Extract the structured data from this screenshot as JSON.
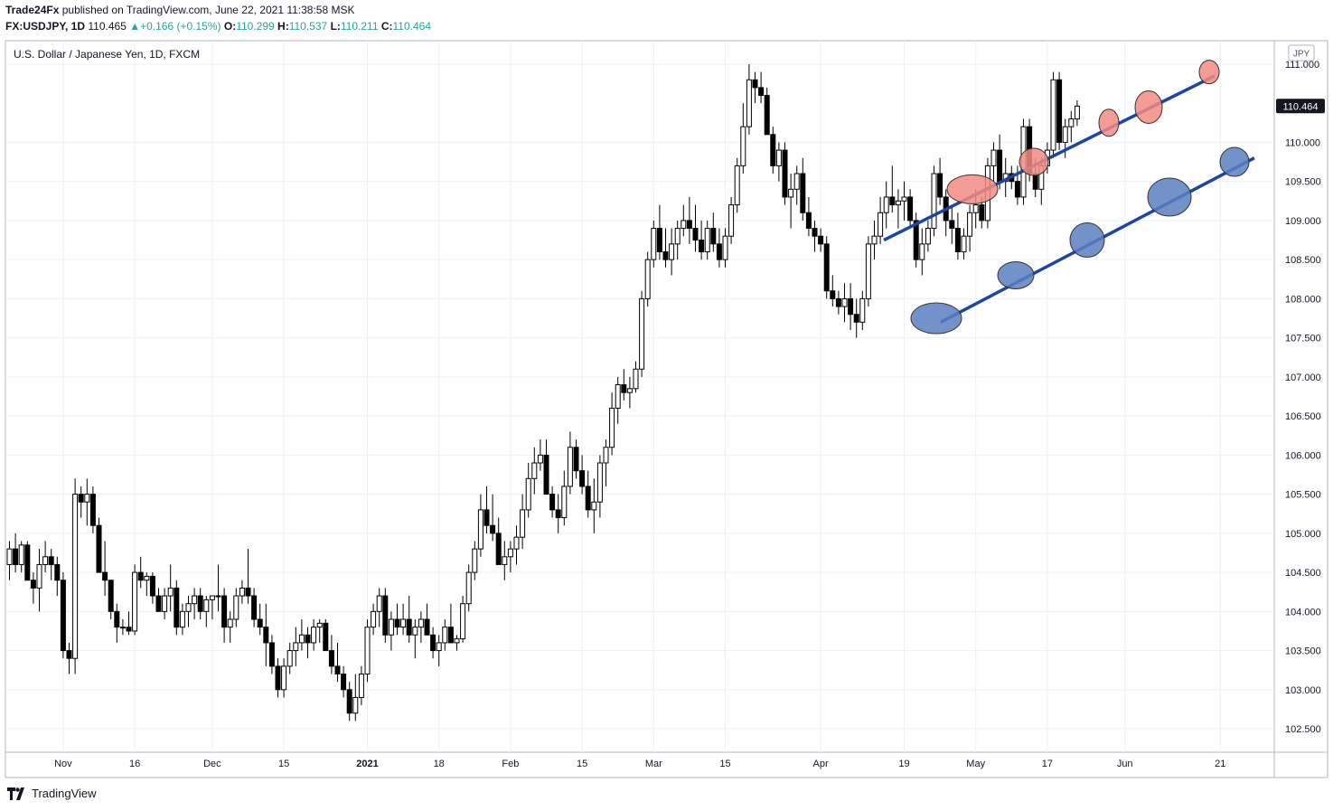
{
  "header": {
    "author": "Trade24Fx",
    "published": "published on TradingView.com, June 22, 2021 11:38:58 MSK",
    "symbol": "FX:USDJPY, 1D",
    "last": "110.465",
    "change": "+0.166 (+0.15%)",
    "o_label": "O:",
    "o": "110.299",
    "h_label": "H:",
    "h": "110.537",
    "l_label": "L:",
    "l": "110.211",
    "c_label": "C:",
    "c": "110.464"
  },
  "brand": {
    "label": "TradingView"
  },
  "colors": {
    "up_fill": "#ffffff",
    "down_fill": "#000000",
    "candle_stroke": "#000000",
    "channel_line": "#1c47a0",
    "resistance": "#f28b82",
    "support": "#5b7fbf",
    "price_label_bg": "#131722",
    "gain": "#26a69a"
  },
  "chart_data": {
    "type": "candlestick",
    "title": "U.S. Dollar / Japanese Yen, 1D, FXCM",
    "currency": "JPY",
    "current_price": "110.464",
    "ylim": [
      102.2,
      111.3
    ],
    "y_ticks": [
      "111.000",
      "110.000",
      "109.500",
      "109.000",
      "108.500",
      "108.000",
      "107.500",
      "107.000",
      "106.500",
      "106.000",
      "105.500",
      "105.000",
      "104.500",
      "104.000",
      "103.500",
      "103.000",
      "102.500"
    ],
    "x_ticks": [
      {
        "label": "Nov",
        "i": 9
      },
      {
        "label": "16",
        "i": 21
      },
      {
        "label": "Dec",
        "i": 34
      },
      {
        "label": "15",
        "i": 46
      },
      {
        "label": "2021",
        "i": 60
      },
      {
        "label": "18",
        "i": 72
      },
      {
        "label": "Feb",
        "i": 84
      },
      {
        "label": "15",
        "i": 96
      },
      {
        "label": "Mar",
        "i": 108
      },
      {
        "label": "15",
        "i": 120
      },
      {
        "label": "Apr",
        "i": 136
      },
      {
        "label": "19",
        "i": 150
      },
      {
        "label": "May",
        "i": 162
      },
      {
        "label": "17",
        "i": 174
      },
      {
        "label": "Jun",
        "i": 187
      },
      {
        "label": "21",
        "i": 203
      }
    ],
    "candles": [
      [
        104.6,
        104.9,
        104.4,
        104.8
      ],
      [
        104.8,
        105.0,
        104.5,
        104.6
      ],
      [
        104.6,
        104.9,
        104.5,
        104.85
      ],
      [
        104.85,
        104.9,
        104.4,
        104.4
      ],
      [
        104.4,
        104.5,
        104.1,
        104.3
      ],
      [
        104.3,
        104.8,
        104.0,
        104.6
      ],
      [
        104.6,
        104.9,
        104.5,
        104.7
      ],
      [
        104.7,
        104.8,
        104.4,
        104.6
      ],
      [
        104.6,
        104.7,
        104.2,
        104.4
      ],
      [
        104.4,
        104.5,
        103.4,
        103.5
      ],
      [
        103.5,
        103.6,
        103.2,
        103.4
      ],
      [
        103.4,
        105.7,
        103.2,
        105.5
      ],
      [
        105.5,
        105.6,
        105.2,
        105.4
      ],
      [
        105.4,
        105.7,
        105.1,
        105.5
      ],
      [
        105.5,
        105.6,
        105.0,
        105.1
      ],
      [
        105.1,
        105.2,
        104.5,
        104.5
      ],
      [
        104.5,
        104.9,
        104.2,
        104.4
      ],
      [
        104.4,
        104.4,
        103.9,
        104.0
      ],
      [
        104.0,
        104.1,
        103.6,
        103.8
      ],
      [
        103.8,
        103.9,
        103.7,
        103.8
      ],
      [
        103.8,
        104.0,
        103.7,
        103.75
      ],
      [
        103.75,
        104.6,
        103.7,
        104.5
      ],
      [
        104.5,
        104.7,
        104.3,
        104.4
      ],
      [
        104.4,
        104.5,
        104.2,
        104.45
      ],
      [
        104.45,
        104.5,
        104.1,
        104.2
      ],
      [
        104.2,
        104.3,
        104.0,
        104.0
      ],
      [
        104.0,
        104.3,
        103.9,
        104.2
      ],
      [
        104.2,
        104.6,
        104.0,
        104.3
      ],
      [
        104.3,
        104.4,
        103.7,
        103.8
      ],
      [
        103.8,
        104.1,
        103.7,
        104.0
      ],
      [
        104.0,
        104.2,
        103.8,
        104.1
      ],
      [
        104.1,
        104.3,
        103.9,
        104.2
      ],
      [
        104.2,
        104.3,
        103.9,
        104.0
      ],
      [
        104.0,
        104.2,
        103.8,
        104.15
      ],
      [
        104.15,
        104.2,
        103.9,
        104.2
      ],
      [
        104.2,
        104.6,
        104.0,
        104.2
      ],
      [
        104.2,
        104.3,
        103.6,
        103.8
      ],
      [
        103.8,
        104.0,
        103.6,
        103.9
      ],
      [
        103.9,
        104.3,
        103.8,
        104.2
      ],
      [
        104.2,
        104.4,
        104.1,
        104.3
      ],
      [
        104.3,
        104.8,
        104.1,
        104.2
      ],
      [
        104.2,
        104.3,
        103.8,
        103.9
      ],
      [
        103.9,
        104.1,
        103.7,
        103.8
      ],
      [
        103.8,
        104.1,
        103.3,
        103.6
      ],
      [
        103.6,
        103.7,
        103.2,
        103.3
      ],
      [
        103.3,
        103.4,
        102.9,
        103.0
      ],
      [
        103.0,
        103.4,
        102.9,
        103.3
      ],
      [
        103.3,
        103.6,
        103.2,
        103.5
      ],
      [
        103.5,
        103.8,
        103.3,
        103.6
      ],
      [
        103.6,
        103.9,
        103.5,
        103.7
      ],
      [
        103.7,
        103.8,
        103.4,
        103.6
      ],
      [
        103.6,
        103.9,
        103.5,
        103.8
      ],
      [
        103.8,
        103.9,
        103.6,
        103.85
      ],
      [
        103.85,
        103.9,
        103.5,
        103.5
      ],
      [
        103.5,
        103.7,
        103.2,
        103.3
      ],
      [
        103.3,
        103.6,
        103.1,
        103.2
      ],
      [
        103.2,
        103.3,
        102.9,
        103.0
      ],
      [
        103.0,
        103.1,
        102.6,
        102.7
      ],
      [
        102.7,
        103.2,
        102.6,
        102.9
      ],
      [
        102.9,
        103.3,
        102.8,
        103.2
      ],
      [
        103.2,
        103.9,
        103.1,
        103.8
      ],
      [
        103.8,
        104.1,
        103.7,
        104.0
      ],
      [
        104.0,
        104.3,
        103.8,
        104.2
      ],
      [
        104.2,
        104.3,
        103.6,
        103.7
      ],
      [
        103.7,
        104.0,
        103.5,
        103.9
      ],
      [
        103.9,
        104.1,
        103.7,
        103.8
      ],
      [
        103.8,
        104.1,
        103.7,
        103.9
      ],
      [
        103.9,
        104.2,
        103.6,
        103.7
      ],
      [
        103.7,
        103.9,
        103.4,
        103.8
      ],
      [
        103.8,
        104.0,
        103.6,
        103.9
      ],
      [
        103.9,
        104.1,
        103.7,
        103.7
      ],
      [
        103.7,
        103.8,
        103.4,
        103.5
      ],
      [
        103.5,
        103.7,
        103.3,
        103.6
      ],
      [
        103.6,
        103.9,
        103.5,
        103.8
      ],
      [
        103.8,
        104.1,
        103.6,
        103.6
      ],
      [
        103.6,
        103.7,
        103.5,
        103.65
      ],
      [
        103.65,
        104.2,
        103.6,
        104.1
      ],
      [
        104.1,
        104.6,
        104.0,
        104.5
      ],
      [
        104.5,
        104.9,
        104.4,
        104.8
      ],
      [
        104.8,
        105.5,
        104.7,
        105.3
      ],
      [
        105.3,
        105.6,
        105.0,
        105.1
      ],
      [
        105.1,
        105.5,
        104.9,
        105.0
      ],
      [
        105.0,
        105.2,
        104.6,
        104.6
      ],
      [
        104.6,
        104.9,
        104.4,
        104.7
      ],
      [
        104.7,
        104.9,
        104.5,
        104.8
      ],
      [
        104.8,
        105.1,
        104.6,
        104.95
      ],
      [
        104.95,
        105.5,
        104.8,
        105.3
      ],
      [
        105.3,
        105.9,
        105.2,
        105.7
      ],
      [
        105.7,
        106.1,
        105.5,
        105.9
      ],
      [
        105.9,
        106.2,
        105.8,
        106.0
      ],
      [
        106.0,
        106.2,
        105.5,
        105.5
      ],
      [
        105.5,
        105.6,
        105.2,
        105.3
      ],
      [
        105.3,
        105.5,
        105.0,
        105.2
      ],
      [
        105.2,
        105.8,
        105.1,
        105.6
      ],
      [
        105.6,
        106.3,
        105.5,
        106.1
      ],
      [
        106.1,
        106.2,
        105.7,
        105.8
      ],
      [
        105.8,
        106.0,
        105.5,
        105.6
      ],
      [
        105.6,
        105.8,
        105.2,
        105.3
      ],
      [
        105.3,
        105.7,
        105.0,
        105.4
      ],
      [
        105.4,
        106.0,
        105.2,
        105.9
      ],
      [
        105.9,
        106.2,
        105.6,
        106.1
      ],
      [
        106.1,
        106.8,
        106.0,
        106.6
      ],
      [
        106.6,
        107.0,
        106.4,
        106.9
      ],
      [
        106.9,
        107.1,
        106.7,
        106.8
      ],
      [
        106.8,
        107.0,
        106.6,
        106.85
      ],
      [
        106.85,
        107.2,
        106.8,
        107.1
      ],
      [
        107.1,
        108.1,
        107.0,
        108.0
      ],
      [
        108.0,
        108.6,
        107.9,
        108.5
      ],
      [
        108.5,
        109.0,
        108.4,
        108.9
      ],
      [
        108.9,
        109.2,
        108.5,
        108.6
      ],
      [
        108.6,
        108.9,
        108.4,
        108.5
      ],
      [
        108.5,
        108.9,
        108.3,
        108.7
      ],
      [
        108.7,
        109.0,
        108.5,
        108.9
      ],
      [
        108.9,
        109.2,
        108.8,
        109.0
      ],
      [
        109.0,
        109.3,
        108.7,
        108.9
      ],
      [
        108.9,
        109.2,
        108.6,
        108.75
      ],
      [
        108.75,
        109.0,
        108.5,
        108.6
      ],
      [
        108.6,
        109.0,
        108.5,
        108.9
      ],
      [
        108.9,
        109.1,
        108.6,
        108.7
      ],
      [
        108.7,
        108.9,
        108.4,
        108.5
      ],
      [
        108.5,
        108.9,
        108.4,
        108.8
      ],
      [
        108.8,
        109.3,
        108.7,
        109.2
      ],
      [
        109.2,
        109.8,
        109.1,
        109.7
      ],
      [
        109.7,
        110.5,
        109.6,
        110.2
      ],
      [
        110.2,
        111.0,
        110.1,
        110.8
      ],
      [
        110.8,
        110.9,
        110.5,
        110.7
      ],
      [
        110.7,
        110.9,
        110.5,
        110.6
      ],
      [
        110.6,
        110.7,
        110.1,
        110.1
      ],
      [
        110.1,
        110.2,
        109.6,
        109.7
      ],
      [
        109.7,
        110.0,
        109.5,
        109.9
      ],
      [
        109.9,
        110.0,
        109.2,
        109.3
      ],
      [
        109.3,
        109.6,
        108.9,
        109.4
      ],
      [
        109.4,
        109.7,
        109.2,
        109.6
      ],
      [
        109.6,
        109.8,
        109.0,
        109.1
      ],
      [
        109.1,
        109.3,
        108.8,
        108.9
      ],
      [
        108.9,
        109.0,
        108.6,
        108.8
      ],
      [
        108.8,
        108.9,
        108.6,
        108.7
      ],
      [
        108.7,
        108.8,
        108.0,
        108.1
      ],
      [
        108.1,
        108.3,
        107.9,
        108.0
      ],
      [
        108.0,
        108.1,
        107.8,
        107.9
      ],
      [
        107.9,
        108.2,
        107.7,
        108.0
      ],
      [
        108.0,
        108.2,
        107.6,
        107.8
      ],
      [
        107.8,
        108.0,
        107.5,
        107.7
      ],
      [
        107.7,
        108.1,
        107.6,
        108.0
      ],
      [
        108.0,
        108.8,
        107.9,
        108.7
      ],
      [
        108.7,
        109.0,
        108.5,
        108.8
      ],
      [
        108.8,
        109.3,
        108.7,
        109.1
      ],
      [
        109.1,
        109.5,
        108.9,
        109.3
      ],
      [
        109.3,
        109.7,
        109.1,
        109.2
      ],
      [
        109.2,
        109.4,
        108.9,
        109.25
      ],
      [
        109.25,
        109.5,
        109.0,
        109.3
      ],
      [
        109.3,
        109.4,
        108.9,
        109.0
      ],
      [
        109.0,
        109.1,
        108.4,
        108.5
      ],
      [
        108.5,
        108.9,
        108.3,
        108.7
      ],
      [
        108.7,
        109.0,
        108.6,
        108.9
      ],
      [
        108.9,
        109.7,
        108.8,
        109.6
      ],
      [
        109.6,
        109.8,
        109.2,
        109.3
      ],
      [
        109.3,
        109.4,
        108.8,
        109.0
      ],
      [
        109.0,
        109.2,
        108.7,
        108.9
      ],
      [
        108.9,
        109.1,
        108.5,
        108.6
      ],
      [
        108.6,
        108.9,
        108.5,
        108.8
      ],
      [
        108.8,
        109.2,
        108.6,
        109.1
      ],
      [
        109.1,
        109.4,
        108.9,
        109.2
      ],
      [
        109.2,
        109.3,
        108.9,
        109.0
      ],
      [
        109.0,
        109.8,
        108.9,
        109.7
      ],
      [
        109.7,
        110.0,
        109.5,
        109.9
      ],
      [
        109.9,
        110.1,
        109.4,
        109.5
      ],
      [
        109.5,
        109.8,
        109.3,
        109.6
      ],
      [
        109.6,
        109.7,
        109.4,
        109.5
      ],
      [
        109.5,
        109.7,
        109.2,
        109.3
      ],
      [
        109.3,
        110.3,
        109.2,
        110.2
      ],
      [
        110.2,
        110.3,
        109.5,
        109.6
      ],
      [
        109.6,
        109.8,
        109.3,
        109.4
      ],
      [
        109.4,
        109.8,
        109.2,
        109.7
      ],
      [
        109.7,
        110.0,
        109.6,
        109.9
      ],
      [
        109.9,
        110.9,
        109.8,
        110.8
      ],
      [
        110.8,
        110.9,
        109.9,
        110.0
      ],
      [
        110.0,
        110.3,
        109.8,
        110.2
      ],
      [
        110.2,
        110.4,
        110.0,
        110.3
      ],
      [
        110.299,
        110.537,
        110.211,
        110.464
      ]
    ],
    "channel": {
      "upper": [
        [
          "Apr 14",
          108.75
        ],
        [
          "Jun 17",
          110.85
        ]
      ],
      "lower": [
        [
          "Apr 22",
          107.7
        ],
        [
          "Jun 22",
          109.8
        ]
      ]
    },
    "resistance_touches": [
      109.4,
      109.75,
      110.25,
      110.45,
      110.9
    ],
    "support_touches": [
      107.75,
      108.3,
      108.75,
      109.3,
      109.75
    ]
  }
}
